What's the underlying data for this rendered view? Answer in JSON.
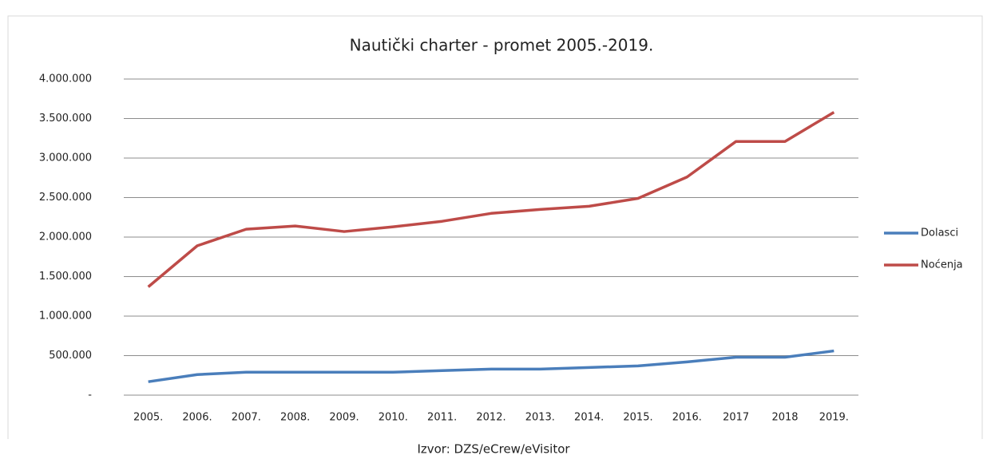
{
  "chart_data": {
    "type": "line",
    "title": "Nautički charter - promet 2005.-2019.",
    "source": "Izvor: DZS/eCrew/eVisitor",
    "categories": [
      "2005.",
      "2006.",
      "2007.",
      "2008.",
      "2009.",
      "2010.",
      "2011.",
      "2012.",
      "2013.",
      "2014.",
      "2015.",
      "2016.",
      "2017",
      "2018",
      "2019."
    ],
    "series": [
      {
        "name": "Dolasci",
        "color": "#4a7ebb",
        "values": [
          170000,
          260000,
          290000,
          290000,
          290000,
          290000,
          310000,
          330000,
          330000,
          350000,
          370000,
          420000,
          480000,
          480000,
          560000
        ]
      },
      {
        "name": "Noćenja",
        "color": "#be4b48",
        "values": [
          1370000,
          1890000,
          2100000,
          2140000,
          2070000,
          2130000,
          2200000,
          2300000,
          2350000,
          2390000,
          2490000,
          2760000,
          3210000,
          3210000,
          3580000
        ]
      }
    ],
    "ylim": [
      0,
      4000000
    ],
    "yticks": [
      {
        "value": 0,
        "label": "-"
      },
      {
        "value": 500000,
        "label": "500.000"
      },
      {
        "value": 1000000,
        "label": "1.000.000"
      },
      {
        "value": 1500000,
        "label": "1.500.000"
      },
      {
        "value": 2000000,
        "label": "2.000.000"
      },
      {
        "value": 2500000,
        "label": "2.500.000"
      },
      {
        "value": 3000000,
        "label": "3.000.000"
      },
      {
        "value": 3500000,
        "label": "3.500.000"
      },
      {
        "value": 4000000,
        "label": "4.000.000"
      }
    ],
    "grid": true,
    "legend": "right"
  }
}
